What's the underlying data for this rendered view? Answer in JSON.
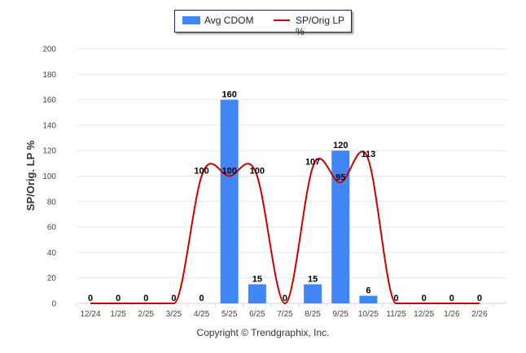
{
  "chart_data": {
    "type": "bar+line",
    "categories": [
      "12/24",
      "1/25",
      "2/25",
      "3/25",
      "4/25",
      "5/25",
      "6/25",
      "7/25",
      "8/25",
      "9/25",
      "10/25",
      "11/25",
      "12/25",
      "1/26",
      "2/26"
    ],
    "series": [
      {
        "name": "Avg CDOM",
        "type": "bar",
        "color": "#4285f4",
        "values": [
          0,
          0,
          0,
          0,
          0,
          160,
          15,
          0,
          15,
          120,
          6,
          0,
          0,
          0,
          0
        ]
      },
      {
        "name": "SP/Orig LP %",
        "type": "spline",
        "color": "#cc0000",
        "values": [
          0,
          0,
          0,
          0,
          100,
          100,
          100,
          0,
          107,
          95,
          113,
          0,
          0,
          0,
          0
        ]
      }
    ],
    "ylabel": "SP/Orig. LP %",
    "ylim": [
      0,
      200
    ],
    "yticks": [
      0,
      20,
      40,
      60,
      80,
      100,
      120,
      140,
      160,
      180,
      200
    ],
    "grid": true,
    "legend": "top-center"
  },
  "copyright": "Copyright © Trendgraphix, Inc."
}
